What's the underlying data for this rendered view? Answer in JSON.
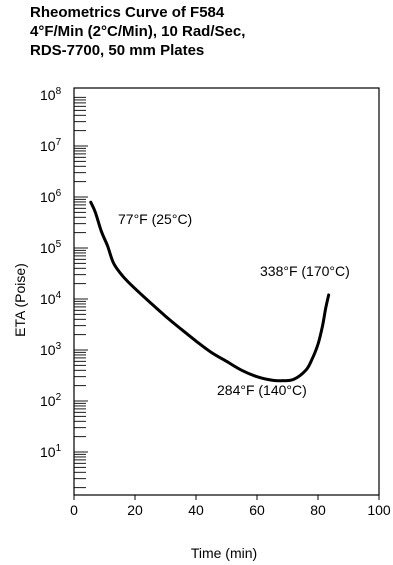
{
  "chart_data": {
    "type": "line",
    "title_lines": [
      "Rheometrics Curve of F584",
      "4°F/Min (2°C/Min), 10 Rad/Sec,",
      "RDS-7700, 50 mm Plates"
    ],
    "xlabel": "Time (min)",
    "ylabel": "ETA (Poise)",
    "xlim": [
      0,
      100
    ],
    "ylim_log10": [
      0,
      8
    ],
    "y_scale": "log",
    "x_ticks": [
      0,
      20,
      40,
      60,
      80,
      100
    ],
    "x_tick_labels": [
      "0",
      "20",
      "40",
      "60",
      "80",
      "100"
    ],
    "y_tick_labels": [
      {
        "base": "10",
        "exp": "1",
        "value": 10
      },
      {
        "base": "10",
        "exp": "2",
        "value": 100
      },
      {
        "base": "10",
        "exp": "3",
        "value": 1000
      },
      {
        "base": "10",
        "exp": "4",
        "value": 10000
      },
      {
        "base": "10",
        "exp": "5",
        "value": 100000
      },
      {
        "base": "10",
        "exp": "6",
        "value": 1000000
      },
      {
        "base": "10",
        "exp": "7",
        "value": 10000000
      },
      {
        "base": "10",
        "exp": "8",
        "value": 100000000
      }
    ],
    "grid": false,
    "series": [
      {
        "color": "#000000",
        "points": [
          {
            "x": 5.5,
            "y": 790000
          },
          {
            "x": 7,
            "y": 500000
          },
          {
            "x": 9,
            "y": 210000
          },
          {
            "x": 11,
            "y": 110000
          },
          {
            "x": 13,
            "y": 50000
          },
          {
            "x": 16,
            "y": 28000
          },
          {
            "x": 20,
            "y": 16000
          },
          {
            "x": 25,
            "y": 8500
          },
          {
            "x": 30,
            "y": 4600
          },
          {
            "x": 35,
            "y": 2600
          },
          {
            "x": 40,
            "y": 1500
          },
          {
            "x": 45,
            "y": 900
          },
          {
            "x": 50,
            "y": 600
          },
          {
            "x": 55,
            "y": 400
          },
          {
            "x": 60,
            "y": 300
          },
          {
            "x": 65,
            "y": 255
          },
          {
            "x": 68,
            "y": 250
          },
          {
            "x": 72,
            "y": 265
          },
          {
            "x": 76,
            "y": 400
          },
          {
            "x": 78,
            "y": 650
          },
          {
            "x": 80,
            "y": 1300
          },
          {
            "x": 81.5,
            "y": 3000
          },
          {
            "x": 82.5,
            "y": 6500
          },
          {
            "x": 83.5,
            "y": 12000
          }
        ]
      }
    ],
    "annotations": [
      {
        "text": "77°F (25°C)",
        "anchor": "upper-left of curve start"
      },
      {
        "text": "338°F (170°C)",
        "anchor": "above curve end"
      },
      {
        "text": "284°F (140°C)",
        "anchor": "below curve minimum"
      }
    ]
  }
}
